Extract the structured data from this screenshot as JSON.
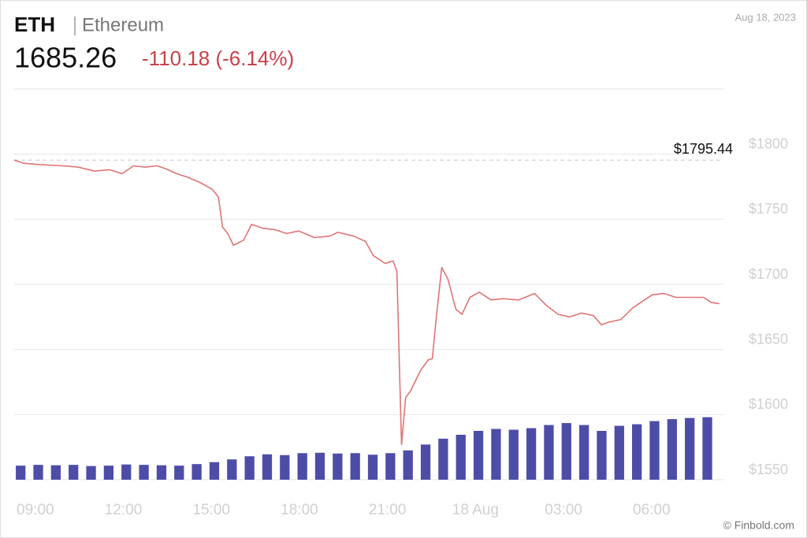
{
  "chart_data": {
    "type": "line",
    "symbol": "ETH",
    "name": "Ethereum",
    "price": "1685.26",
    "change": "-110.18 (-6.14%)",
    "date": "Aug 18, 2023",
    "credit": "© Finbold.com",
    "reference": {
      "value": 1795.44,
      "label": "$1795.44"
    },
    "x": [
      8.28,
      8.6,
      9.13,
      9.94,
      10.47,
      11.01,
      11.54,
      11.95,
      12.35,
      12.75,
      13.15,
      13.42,
      13.82,
      14.22,
      14.63,
      15.03,
      15.24,
      15.38,
      15.56,
      15.75,
      16.1,
      16.37,
      16.77,
      17.17,
      17.57,
      17.97,
      18.51,
      19.04,
      19.31,
      19.85,
      20.25,
      20.52,
      20.92,
      21.19,
      21.32,
      21.48,
      21.62,
      21.78,
      22.13,
      22.39,
      22.53,
      22.66,
      22.85,
      23.06,
      23.33,
      23.54,
      23.81,
      24.13,
      24.53,
      24.94,
      25.47,
      26.01,
      26.41,
      26.81,
      27.21,
      27.62,
      28.02,
      28.29,
      28.55,
      28.96,
      29.36,
      29.76,
      30.03,
      30.43,
      30.83,
      31.37,
      31.77,
      32.04,
      32.31
    ],
    "series": [
      {
        "color": "#e07474",
        "values": [
          1795.44,
          1793,
          1792,
          1791,
          1790,
          1787,
          1788,
          1785,
          1791,
          1790,
          1791,
          1789,
          1785,
          1782,
          1778,
          1773,
          1767,
          1744,
          1739,
          1730,
          1734,
          1746,
          1743,
          1742,
          1739,
          1741,
          1736,
          1737,
          1740,
          1737,
          1733,
          1722,
          1716,
          1718,
          1710,
          1577,
          1613,
          1618,
          1634,
          1642,
          1643,
          1674,
          1713,
          1704,
          1681,
          1677,
          1690,
          1694,
          1688,
          1689,
          1688,
          1693,
          1684,
          1677,
          1675,
          1678,
          1676,
          1669,
          1671,
          1673,
          1682,
          1688,
          1692,
          1693,
          1690,
          1690,
          1690,
          1686,
          1685.26
        ]
      }
    ],
    "volume": {
      "type": "bar",
      "axis": "y2",
      "color": "#4d4da8",
      "x": [
        8.5,
        9.1,
        9.7,
        10.3,
        10.9,
        11.5,
        12.1,
        12.7,
        13.3,
        13.9,
        14.5,
        15.1,
        15.7,
        16.3,
        16.9,
        17.5,
        18.1,
        18.7,
        19.3,
        19.9,
        20.5,
        21.1,
        21.7,
        22.3,
        22.9,
        23.5,
        24.1,
        24.7,
        25.3,
        25.9,
        26.5,
        27.1,
        27.7,
        28.3,
        28.9,
        29.5,
        30.1,
        30.7,
        31.3,
        31.9
      ],
      "values": [
        3.6,
        3.8,
        3.7,
        3.8,
        3.5,
        3.6,
        3.9,
        3.8,
        3.7,
        3.6,
        4.0,
        4.5,
        5.2,
        6.0,
        6.5,
        6.3,
        6.8,
        6.9,
        6.7,
        6.8,
        6.4,
        6.8,
        7.5,
        9.0,
        10.5,
        11.5,
        12.5,
        13.0,
        12.8,
        13.2,
        14.0,
        14.5,
        14.0,
        12.5,
        13.8,
        14.2,
        15.0,
        15.5,
        15.8,
        16.0
      ]
    },
    "xlim": [
      8.28,
      32.45
    ],
    "xticks": [
      {
        "value": 9,
        "label": "09:00"
      },
      {
        "value": 12,
        "label": "12:00"
      },
      {
        "value": 15,
        "label": "15:00"
      },
      {
        "value": 18,
        "label": "18:00"
      },
      {
        "value": 21,
        "label": "21:00"
      },
      {
        "value": 24,
        "label": "18 Aug"
      },
      {
        "value": 27,
        "label": "03:00"
      },
      {
        "value": 30,
        "label": "06:00"
      }
    ],
    "ylim": [
      1550,
      1850
    ],
    "yticks": [
      {
        "value": 1550,
        "label": "$1550"
      },
      {
        "value": 1600,
        "label": "$1600"
      },
      {
        "value": 1650,
        "label": "$1650"
      },
      {
        "value": 1700,
        "label": "$1700"
      },
      {
        "value": 1750,
        "label": "$1750"
      },
      {
        "value": 1800,
        "label": "$1800"
      }
    ],
    "y2lim": [
      0,
      100
    ],
    "grid": true
  }
}
